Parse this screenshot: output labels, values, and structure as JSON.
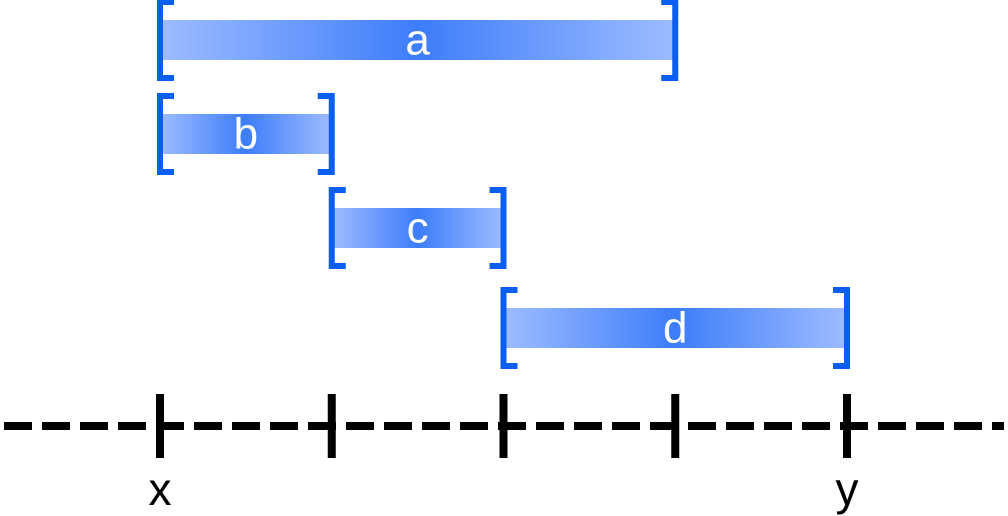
{
  "colors": {
    "bracket": "#0a5ef0",
    "bar_light": "#9ebcff",
    "bar_dark": "#3d7dfa",
    "axis": "#000000",
    "label_text": "#ffffff"
  },
  "intervals": [
    {
      "label": "a",
      "start": 0,
      "end": 3
    },
    {
      "label": "b",
      "start": 0,
      "end": 1
    },
    {
      "label": "c",
      "start": 1,
      "end": 2
    },
    {
      "label": "d",
      "start": 2,
      "end": 4
    }
  ],
  "axis": {
    "ticks": [
      0,
      1,
      2,
      3,
      4
    ],
    "start_label": "x",
    "end_label": "y"
  }
}
